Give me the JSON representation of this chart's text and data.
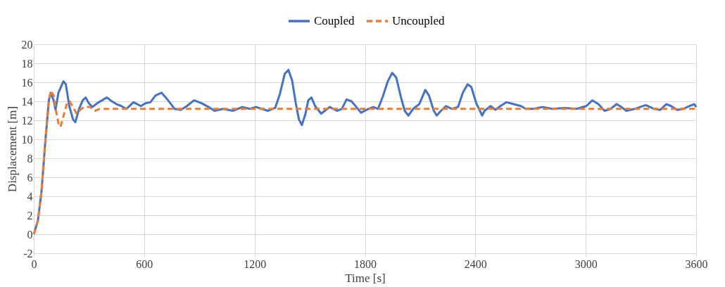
{
  "chart_data": {
    "type": "line",
    "xlabel": "Time [s]",
    "ylabel": "Displacement [m]",
    "xlim": [
      0,
      3600
    ],
    "xticks": [
      0,
      600,
      1200,
      1800,
      2400,
      3000,
      3600
    ],
    "ylim": [
      -2,
      20
    ],
    "yticks": [
      -2,
      0,
      2,
      4,
      6,
      8,
      10,
      12,
      14,
      16,
      18,
      20
    ],
    "grid": true,
    "legend": "top",
    "marker": "none",
    "series": [
      {
        "name": "Coupled",
        "color": "#4472c4",
        "line_style": "solid",
        "x": [
          0,
          22,
          42,
          62,
          82,
          92,
          108,
          118,
          134,
          161,
          174,
          193,
          213,
          226,
          246,
          266,
          282,
          299,
          318,
          345,
          371,
          397,
          424,
          450,
          476,
          503,
          542,
          582,
          608,
          634,
          661,
          694,
          726,
          766,
          799,
          832,
          871,
          911,
          950,
          982,
          1029,
          1082,
          1134,
          1174,
          1207,
          1240,
          1272,
          1312,
          1338,
          1364,
          1384,
          1404,
          1424,
          1441,
          1457,
          1477,
          1492,
          1509,
          1529,
          1562,
          1582,
          1608,
          1648,
          1674,
          1700,
          1727,
          1753,
          1779,
          1818,
          1845,
          1871,
          1897,
          1924,
          1948,
          1970,
          1996,
          2016,
          2036,
          2062,
          2095,
          2128,
          2148,
          2174,
          2190,
          2213,
          2240,
          2273,
          2306,
          2332,
          2358,
          2378,
          2405,
          2437,
          2450,
          2483,
          2509,
          2536,
          2569,
          2608,
          2648,
          2674,
          2714,
          2766,
          2819,
          2885,
          2950,
          3003,
          3036,
          3069,
          3102,
          3135,
          3168,
          3194,
          3220,
          3266,
          3326,
          3372,
          3405,
          3438,
          3464,
          3497,
          3530,
          3563,
          3590,
          3600
        ],
        "values": [
          0,
          1.4,
          4.5,
          9.6,
          14.1,
          14.9,
          14.1,
          13.1,
          14.9,
          16.1,
          15.8,
          13.5,
          12.1,
          11.8,
          13.2,
          14.1,
          14.4,
          13.8,
          13.4,
          13.8,
          14.1,
          14.4,
          14.0,
          13.7,
          13.5,
          13.2,
          13.9,
          13.5,
          13.8,
          13.9,
          14.6,
          14.9,
          14.2,
          13.2,
          13.1,
          13.5,
          14.1,
          13.8,
          13.4,
          13.0,
          13.2,
          13.0,
          13.4,
          13.2,
          13.4,
          13.2,
          13.0,
          13.3,
          14.8,
          16.9,
          17.3,
          16.2,
          13.8,
          12.1,
          11.5,
          12.7,
          14.1,
          14.4,
          13.5,
          12.7,
          13.0,
          13.4,
          13.0,
          13.2,
          14.2,
          14.0,
          13.4,
          12.8,
          13.2,
          13.4,
          13.2,
          14.5,
          16.1,
          17.0,
          16.5,
          14.4,
          13.0,
          12.5,
          13.2,
          13.7,
          15.2,
          14.6,
          13.0,
          12.5,
          13.0,
          13.5,
          13.2,
          13.4,
          14.9,
          15.8,
          15.5,
          13.8,
          12.5,
          13.0,
          13.5,
          13.1,
          13.5,
          13.9,
          13.7,
          13.5,
          13.2,
          13.2,
          13.4,
          13.2,
          13.3,
          13.2,
          13.5,
          14.1,
          13.7,
          13.0,
          13.2,
          13.7,
          13.4,
          13.0,
          13.2,
          13.6,
          13.2,
          13.1,
          13.7,
          13.5,
          13.1,
          13.2,
          13.5,
          13.7,
          13.4
        ]
      },
      {
        "name": "Uncoupled",
        "color": "#ed7d31",
        "line_style": "dashed",
        "x": [
          0,
          22,
          42,
          62,
          82,
          92,
          108,
          121,
          134,
          145,
          161,
          182,
          195,
          213,
          233,
          253,
          272,
          305,
          332,
          358,
          600,
          1200,
          1800,
          2400,
          3000,
          3600
        ],
        "values": [
          0,
          1.4,
          4.5,
          9.6,
          14.1,
          15.1,
          14.6,
          13.0,
          11.7,
          11.3,
          12.4,
          13.9,
          14.0,
          13.4,
          12.7,
          13.1,
          13.4,
          13.4,
          13.0,
          13.2,
          13.2,
          13.2,
          13.2,
          13.2,
          13.2,
          13.2
        ]
      }
    ]
  }
}
